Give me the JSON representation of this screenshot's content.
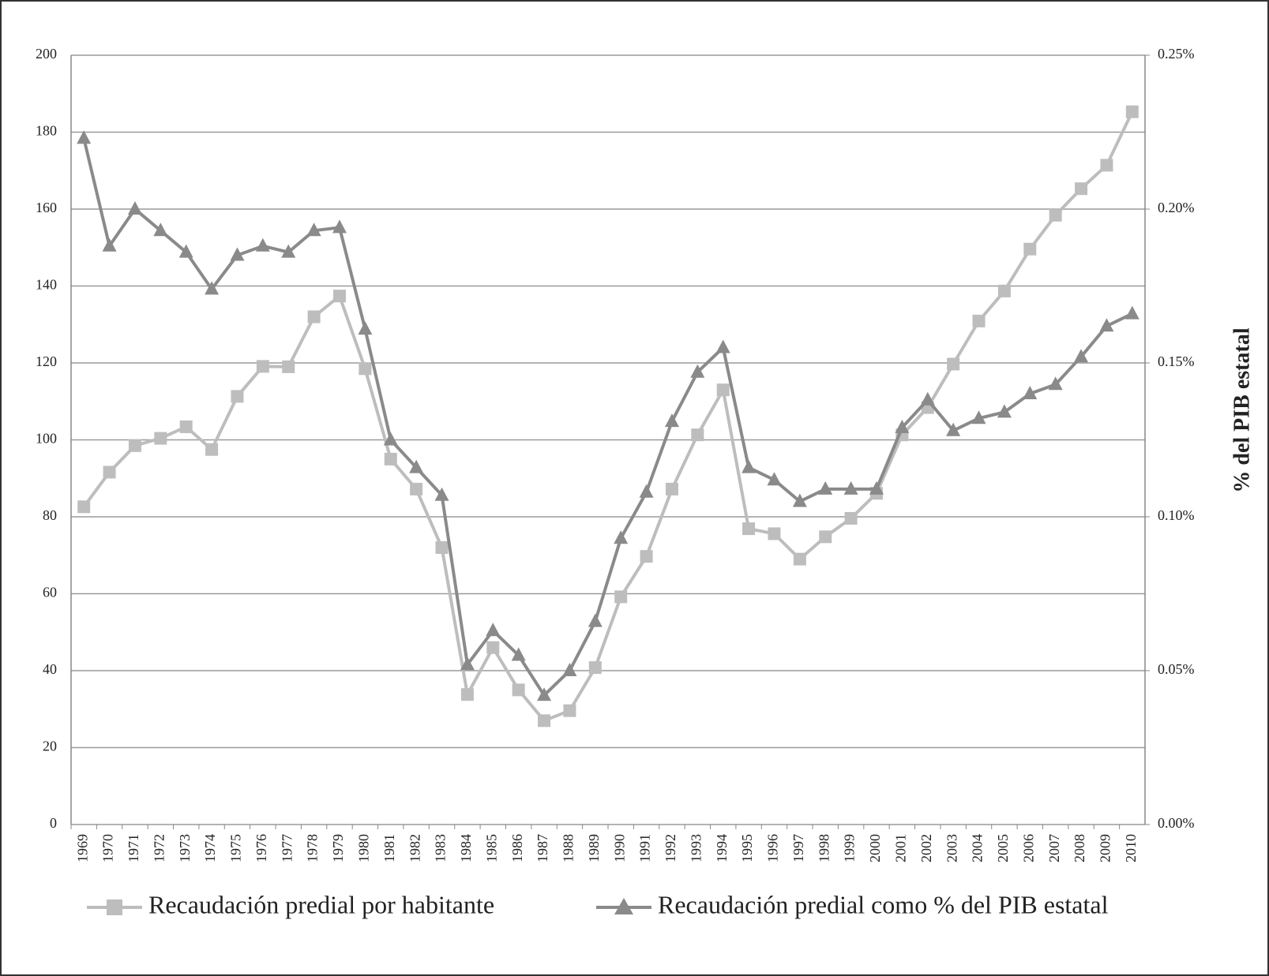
{
  "chart_data": {
    "type": "line",
    "y_label": "% del PIB estatal",
    "categories": [
      "1969",
      "1970",
      "1971",
      "1972",
      "1973",
      "1974",
      "1975",
      "1976",
      "1977",
      "1978",
      "1979",
      "1980",
      "1981",
      "1982",
      "1983",
      "1984",
      "1985",
      "1986",
      "1987",
      "1988",
      "1989",
      "1990",
      "1991",
      "1992",
      "1993",
      "1994",
      "1995",
      "1996",
      "1997",
      "1998",
      "1999",
      "2000",
      "2001",
      "2002",
      "2003",
      "2004",
      "2005",
      "2006",
      "2007",
      "2008",
      "2009",
      "2010"
    ],
    "series": [
      {
        "name": "Recaudación predial por habitante",
        "color": "#bdbdbd",
        "marker": "square",
        "axis": "y",
        "values": [
          82.6,
          91.6,
          98.5,
          100.4,
          103.4,
          97.5,
          111.3,
          119.1,
          119,
          132,
          137.4,
          118.5,
          95,
          87.2,
          72,
          33.8,
          46,
          35,
          27,
          29.6,
          40.8,
          59.2,
          69.7,
          87.2,
          101.3,
          113,
          76.9,
          75.6,
          69,
          74.8,
          79.6,
          86.1,
          101.3,
          108.4,
          119.7,
          130.9,
          138.7,
          149.6,
          158.4,
          165.3,
          171.4,
          185.3
        ]
      },
      {
        "name": "Recaudación predial como % del PIB estatal",
        "color": "#8a8a8a",
        "marker": "triangle",
        "axis": "y2",
        "values": [
          0.223,
          0.188,
          0.2,
          0.193,
          0.186,
          0.174,
          0.185,
          0.188,
          0.186,
          0.193,
          0.194,
          0.161,
          0.125,
          0.116,
          0.107,
          0.052,
          0.063,
          0.055,
          0.042,
          0.05,
          0.066,
          0.093,
          0.108,
          0.131,
          0.147,
          0.155,
          0.116,
          0.112,
          0.105,
          0.109,
          0.109,
          0.109,
          0.129,
          0.138,
          0.128,
          0.132,
          0.134,
          0.14,
          0.143,
          0.152,
          0.162,
          0.166
        ]
      }
    ],
    "ylim": [
      0,
      200
    ],
    "yticks": [
      0,
      20,
      40,
      60,
      80,
      100,
      120,
      140,
      160,
      180,
      200
    ],
    "y2lim": [
      0,
      0.25
    ],
    "y2ticks": [
      {
        "value": 0,
        "label": "0.00%"
      },
      {
        "value": 0.05,
        "label": "0.05%"
      },
      {
        "value": 0.1,
        "label": "0.10%"
      },
      {
        "value": 0.15,
        "label": "0.15%"
      },
      {
        "value": 0.2,
        "label": "0.20%"
      },
      {
        "value": 0.25,
        "label": "0.25%"
      }
    ],
    "grid": true,
    "legend": "bottom"
  }
}
